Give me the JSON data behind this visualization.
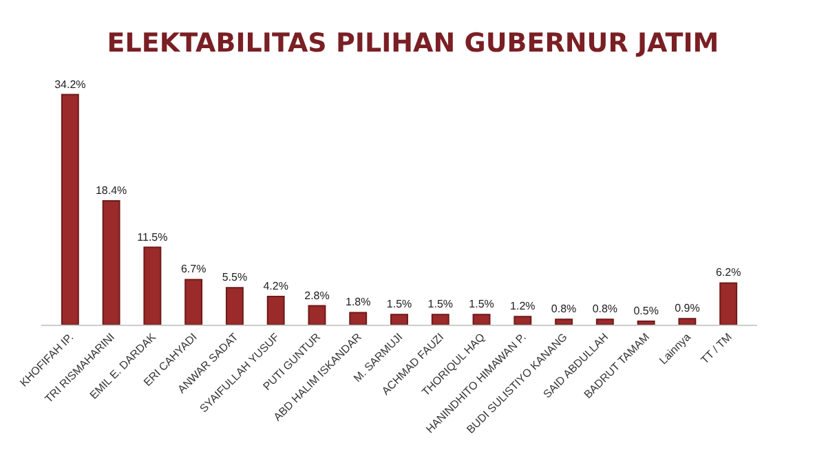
{
  "chart_data": {
    "type": "bar",
    "title": "ELEKTABILITAS PILIHAN GUBERNUR JATIM",
    "categories": [
      "KHOFIFAH IP.",
      "TRI RISMAHARINI",
      "EMIL E. DARDAK",
      "ERI CAHYADI",
      "ANWAR SADAT",
      "SYAIFULLAH YUSUF",
      "PUTI GUNTUR",
      "ABD HALIM ISKANDAR",
      "M. SARMUJI",
      "ACHMAD FAUZI",
      "THORIQUL HAQ",
      "HANINDHITO HIMAWAN P.",
      "BUDI SULISTIYO KANANG",
      "SAID ABDULLAH",
      "BADRUT TAMAM",
      "Lainnya",
      "TT / TM"
    ],
    "values": [
      34.2,
      18.4,
      11.5,
      6.7,
      5.5,
      4.2,
      2.8,
      1.8,
      1.5,
      1.5,
      1.5,
      1.2,
      0.8,
      0.8,
      0.5,
      0.9,
      6.2
    ],
    "value_labels": [
      "34.2%",
      "18.4%",
      "11.5%",
      "6.7%",
      "5.5%",
      "4.2%",
      "2.8%",
      "1.8%",
      "1.5%",
      "1.5%",
      "1.5%",
      "1.2%",
      "0.8%",
      "0.8%",
      "0.5%",
      "0.9%",
      "6.2%"
    ],
    "color": "#9b2a2a",
    "grid": false,
    "legend": false
  }
}
